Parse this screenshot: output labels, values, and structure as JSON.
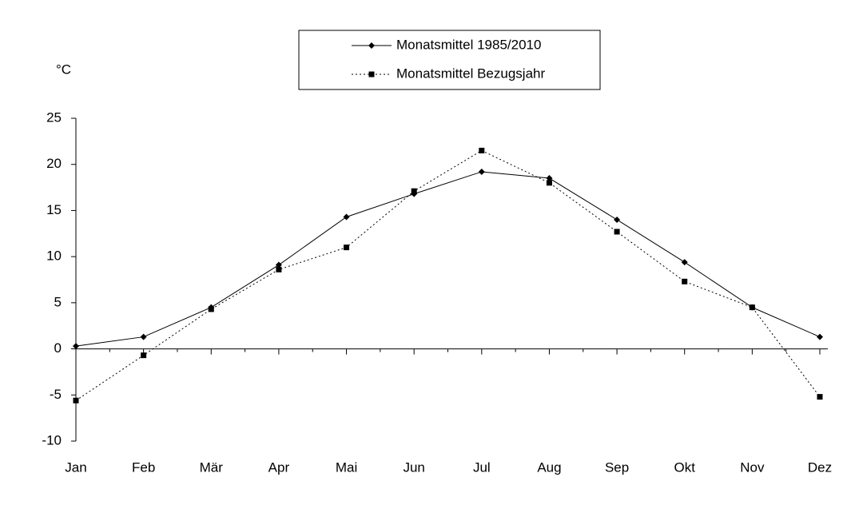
{
  "chart_data": {
    "type": "line",
    "y_label": "°C",
    "categories": [
      "Jan",
      "Feb",
      "Mär",
      "Apr",
      "Mai",
      "Jun",
      "Jul",
      "Aug",
      "Sep",
      "Okt",
      "Nov",
      "Dez"
    ],
    "series": [
      {
        "name": "Monatsmittel 1985/2010",
        "color": "#000000",
        "style": "solid",
        "marker": "diamond",
        "values": [
          0.3,
          1.3,
          4.5,
          9.1,
          14.3,
          16.8,
          19.2,
          18.5,
          14.0,
          9.4,
          4.5,
          1.3
        ]
      },
      {
        "name": "Monatsmittel Bezugsjahr",
        "color": "#000000",
        "style": "dotted",
        "marker": "square",
        "values": [
          -5.6,
          -0.7,
          4.3,
          8.6,
          11.0,
          17.1,
          21.5,
          18.0,
          12.7,
          7.3,
          4.5,
          -5.2
        ]
      }
    ],
    "ylim": [
      -10,
      25
    ],
    "yticks": [
      -10,
      -5,
      0,
      5,
      10,
      15,
      20,
      25
    ],
    "grid": false,
    "legend": "top"
  }
}
